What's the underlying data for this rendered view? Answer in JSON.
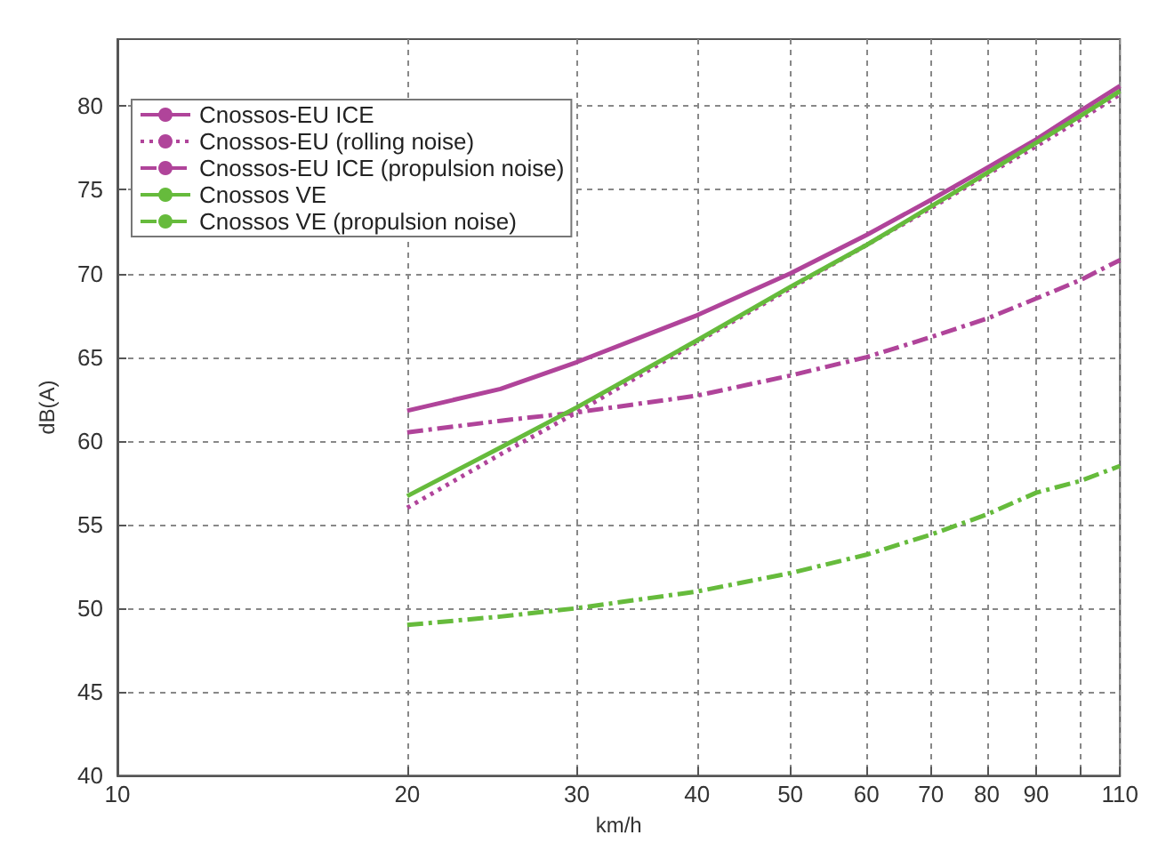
{
  "chart_data": {
    "type": "line",
    "xlabel": "km/h",
    "ylabel": "dB(A)",
    "log": "x",
    "grid": true,
    "legend": "top left",
    "marker": "none",
    "x": [
      20,
      25,
      30,
      40,
      50,
      60,
      70,
      80,
      90,
      100,
      110
    ],
    "xlim": [
      10,
      110
    ],
    "xticks": [
      10,
      20,
      30,
      40,
      50,
      60,
      70,
      80,
      90,
      {
        "value": 100,
        "label": null
      },
      110
    ],
    "ylim": [
      40,
      84
    ],
    "yticks": [
      40,
      45,
      50,
      55,
      60,
      65,
      70,
      75,
      80
    ],
    "series": [
      {
        "name": "Cnossos-EU ICE",
        "color": "#b0449a",
        "line_style": "solid",
        "values": [
          61.8,
          63.1,
          64.7,
          67.5,
          70,
          72.3,
          74.4,
          76.3,
          78,
          79.7,
          81.2
        ]
      },
      {
        "name": "Cnossos-EU (rolling noise)",
        "color": "#b0449a",
        "line_style": "dotted",
        "values": [
          56,
          59.2,
          61.7,
          65.9,
          69.1,
          71.7,
          73.9,
          75.9,
          77.6,
          79.2,
          80.7
        ]
      },
      {
        "name": "Cnossos-EU ICE (propulsion noise)",
        "color": "#b0449a",
        "line_style": "dashdot",
        "values": [
          60.5,
          61.2,
          61.7,
          62.7,
          63.9,
          65,
          66.2,
          67.3,
          68.5,
          69.6,
          70.8
        ]
      },
      {
        "name": "Cnossos VE",
        "color": "#66bb3c",
        "line_style": "solid",
        "values": [
          56.7,
          59.6,
          62,
          66,
          69.2,
          71.7,
          74,
          76,
          77.8,
          79.4,
          80.9
        ]
      },
      {
        "name": "Cnossos VE (propulsion noise)",
        "color": "#66bb3c",
        "line_style": "dashdot",
        "values": [
          49,
          49.5,
          50,
          51,
          52.1,
          53.2,
          54.4,
          55.6,
          56.9,
          57.6,
          58.5
        ]
      }
    ]
  }
}
